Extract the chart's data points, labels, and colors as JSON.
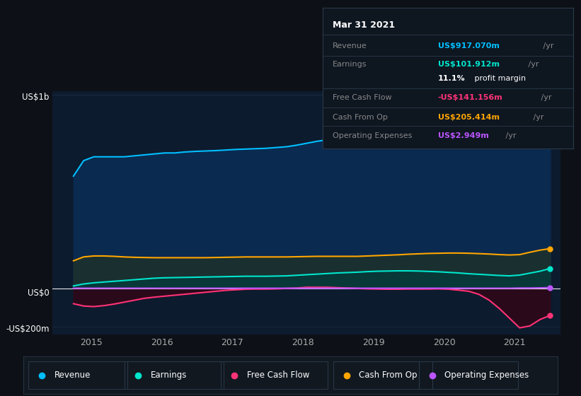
{
  "background_color": "#0d1117",
  "plot_bg_color": "#0d1b2e",
  "colors": {
    "revenue": "#00bfff",
    "earnings": "#00e5cc",
    "free_cash_flow": "#ff3377",
    "cash_from_op": "#ffa500",
    "operating_expenses": "#bb55ff"
  },
  "fill_colors": {
    "revenue": "#0a2a50",
    "cash_from_op": "#1a3030",
    "earnings": "#083838",
    "free_cash_flow_neg": "#2a0a1a"
  },
  "tooltip": {
    "date": "Mar 31 2021",
    "revenue_label": "Revenue",
    "revenue_val": "US$917.070m",
    "earnings_label": "Earnings",
    "earnings_val": "US$101.912m",
    "profit_margin": "11.1%",
    "profit_margin_rest": " profit margin",
    "fcf_label": "Free Cash Flow",
    "fcf_val": "-US$141.156m",
    "cfop_label": "Cash From Op",
    "cfop_val": "US$205.414m",
    "opex_label": "Operating Expenses",
    "opex_val": "US$2.949m"
  },
  "legend_entries": [
    "Revenue",
    "Earnings",
    "Free Cash Flow",
    "Cash From Op",
    "Operating Expenses"
  ],
  "ylabel_top": "US$1b",
  "ylabel_mid": "US$0",
  "ylabel_bot": "-US$200m",
  "xtick_labels": [
    "2015",
    "2016",
    "2017",
    "2018",
    "2019",
    "2020",
    "2021"
  ],
  "ylim": [
    -240,
    1020
  ],
  "xlim_start": 2014.2,
  "xlim_end": 2021.4,
  "n_points": 48,
  "revenue": [
    580,
    660,
    680,
    680,
    680,
    680,
    685,
    690,
    695,
    700,
    700,
    705,
    708,
    710,
    712,
    715,
    718,
    720,
    722,
    724,
    728,
    732,
    740,
    750,
    760,
    768,
    776,
    784,
    792,
    810,
    825,
    840,
    852,
    862,
    870,
    868,
    862,
    855,
    848,
    840,
    825,
    808,
    790,
    800,
    855,
    882,
    900,
    917
  ],
  "earnings": [
    12,
    22,
    28,
    32,
    36,
    40,
    44,
    48,
    52,
    54,
    55,
    56,
    57,
    58,
    59,
    60,
    61,
    62,
    62,
    62,
    63,
    64,
    67,
    70,
    73,
    76,
    79,
    81,
    83,
    86,
    88,
    89,
    90,
    90,
    89,
    87,
    85,
    82,
    79,
    75,
    72,
    69,
    66,
    64,
    68,
    78,
    88,
    102
  ],
  "free_cash_flow": [
    -80,
    -92,
    -95,
    -90,
    -82,
    -72,
    -62,
    -52,
    -46,
    -41,
    -36,
    -31,
    -26,
    -21,
    -16,
    -11,
    -8,
    -5,
    -4,
    -4,
    -3,
    -1,
    1,
    5,
    5,
    5,
    3,
    1,
    -1,
    -3,
    -4,
    -5,
    -5,
    -4,
    -4,
    -4,
    -3,
    -5,
    -10,
    -16,
    -32,
    -62,
    -105,
    -155,
    -205,
    -195,
    -162,
    -141
  ],
  "cash_from_op": [
    142,
    162,
    167,
    167,
    165,
    162,
    160,
    159,
    158,
    158,
    158,
    158,
    158,
    158,
    159,
    160,
    161,
    162,
    162,
    162,
    162,
    162,
    163,
    164,
    165,
    165,
    165,
    165,
    165,
    167,
    169,
    171,
    173,
    176,
    178,
    180,
    181,
    182,
    182,
    181,
    179,
    177,
    174,
    172,
    174,
    186,
    197,
    205
  ],
  "operating_expenses": [
    0,
    0,
    0,
    0,
    0,
    0,
    0,
    0,
    0,
    0,
    0,
    0,
    0,
    0,
    0,
    0,
    0,
    0,
    0,
    0,
    0,
    0,
    0,
    0,
    0,
    0,
    0,
    0,
    0,
    0,
    0,
    0,
    0,
    0,
    0,
    0,
    0,
    0,
    0,
    0,
    0,
    0,
    0,
    0,
    1,
    1,
    2,
    3
  ]
}
